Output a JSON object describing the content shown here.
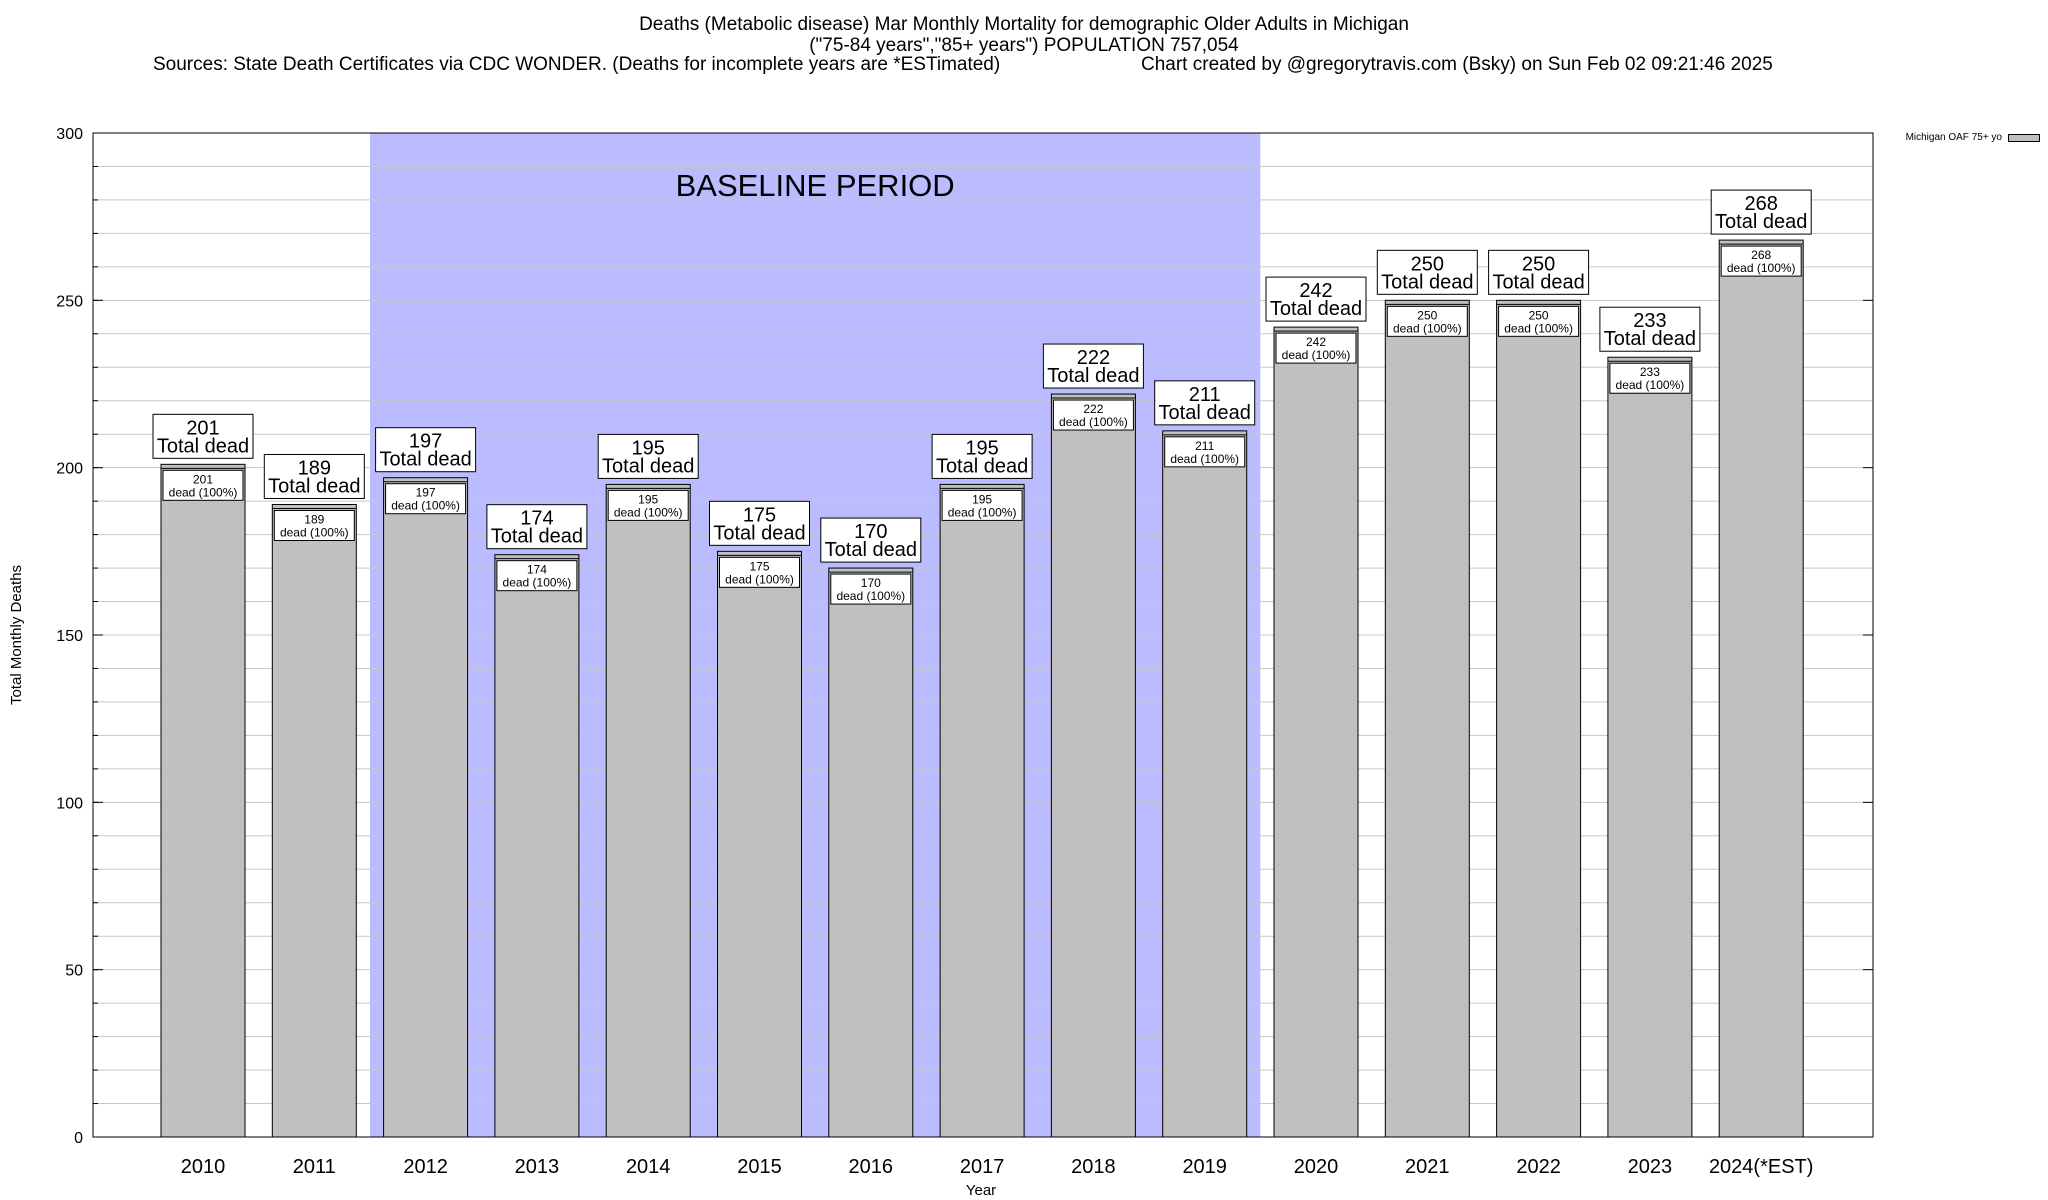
{
  "chart_data": {
    "type": "bar",
    "title_lines": [
      "Deaths (Metabolic disease) Mar Monthly Mortality for demographic Older Adults in Michigan",
      "(\"75-84 years\",\"85+ years\") POPULATION 757,054"
    ],
    "sources": "Sources: State Death Certificates via CDC WONDER. (Deaths for incomplete years are *ESTimated)",
    "credit": "Chart created by @gregorytravis.com (Bsky) on Sun Feb 02 09:21:46 2025",
    "xlabel": "Year",
    "ylabel": "Total Monthly Deaths",
    "ylim": [
      0,
      300
    ],
    "yticks": [
      0,
      50,
      100,
      150,
      200,
      250,
      300
    ],
    "minor_tick_step": 10,
    "grid": true,
    "categories": [
      "2010",
      "2011",
      "2012",
      "2013",
      "2014",
      "2015",
      "2016",
      "2017",
      "2018",
      "2019",
      "2020",
      "2021",
      "2022",
      "2023",
      "2024(*EST)"
    ],
    "series": [
      {
        "name": "Michigan OAF 75+ yo",
        "values": [
          201,
          189,
          197,
          174,
          195,
          175,
          170,
          195,
          222,
          211,
          242,
          250,
          250,
          233,
          268
        ],
        "color": "#c0c0c0"
      }
    ],
    "outer_label_suffix": "Total dead",
    "inner_label_suffix": "dead (100%)",
    "baseline": {
      "label": "BASELINE PERIOD",
      "from": "2012",
      "to": "2019",
      "color": "#bbbbff"
    },
    "legend_position": "top-right"
  }
}
